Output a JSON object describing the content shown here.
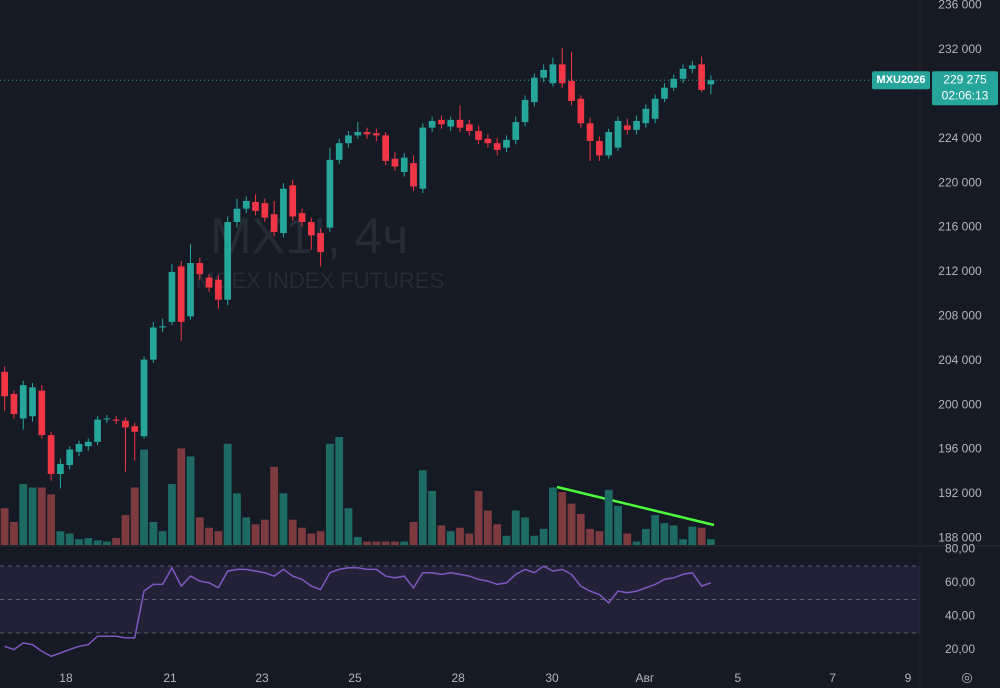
{
  "chart_data": [
    {
      "type": "candlestick",
      "title": "MX1!, 4ч",
      "subtitle": "MOEX INDEX FUTURES",
      "symbol": "MXU2026",
      "countdown": "02:06:13",
      "last_price": {
        "value": 229275,
        "label": "229 275"
      },
      "up_color": "#26a69a",
      "down_color": "#f23645",
      "volume_up_color": "#1e6b64",
      "volume_down_color": "#7d3a3f",
      "xlim": [
        -0.5,
        98.5
      ],
      "xticks": [
        {
          "value": 6.6,
          "label": "18"
        },
        {
          "value": 17.8,
          "label": "21"
        },
        {
          "value": 27.7,
          "label": "23"
        },
        {
          "value": 37.7,
          "label": "25"
        },
        {
          "value": 48.8,
          "label": "28"
        },
        {
          "value": 58.9,
          "label": "30"
        },
        {
          "value": 68.9,
          "label": "Авг"
        },
        {
          "value": 78.9,
          "label": "5"
        },
        {
          "value": 89.1,
          "label": "7"
        },
        {
          "value": 97.2,
          "label": "9"
        }
      ],
      "ylim": [
        187400,
        236500
      ],
      "yticks": [
        {
          "value": 188000,
          "label": "188 000"
        },
        {
          "value": 192000,
          "label": "192 000"
        },
        {
          "value": 196000,
          "label": "196 000"
        },
        {
          "value": 200000,
          "label": "200 000"
        },
        {
          "value": 204000,
          "label": "204 000"
        },
        {
          "value": 208000,
          "label": "208 000"
        },
        {
          "value": 212000,
          "label": "212 000"
        },
        {
          "value": 216000,
          "label": "216 000"
        },
        {
          "value": 220000,
          "label": "220 000"
        },
        {
          "value": 224000,
          "label": "224 000"
        },
        {
          "value": 228000,
          "label": "228 000"
        },
        {
          "value": 232000,
          "label": "232 000"
        },
        {
          "value": 236000,
          "label": "236 000"
        }
      ],
      "open": [
        203000,
        201000,
        198800,
        199000,
        201300,
        197300,
        193800,
        194600,
        195800,
        196300,
        196700,
        198800,
        198700,
        198600,
        198100,
        197200,
        204100,
        207000,
        207500,
        212500,
        208000,
        212800,
        211500,
        211300,
        209500,
        216500,
        217700,
        218300,
        218200,
        217200,
        215500,
        219800,
        217300,
        216500,
        215500,
        216000,
        222100,
        223600,
        224300,
        224600,
        224500,
        224300,
        222200,
        221000,
        221800,
        219500,
        225000,
        225700,
        225100,
        225700,
        225300,
        224700,
        224000,
        223600,
        223200,
        223900,
        225500,
        227300,
        229500,
        229000,
        230700,
        229200,
        227600,
        225400,
        223800,
        222500,
        223200,
        225200,
        224800,
        225400,
        225800,
        227600,
        228600,
        229400,
        230300,
        230700,
        228900
      ],
      "high": [
        203500,
        201300,
        202200,
        202000,
        201800,
        197600,
        195200,
        196300,
        196800,
        197000,
        199000,
        199100,
        199000,
        198900,
        198400,
        204400,
        207500,
        207800,
        212700,
        213000,
        214500,
        213300,
        211800,
        211700,
        217000,
        218600,
        218800,
        219000,
        218600,
        218400,
        220000,
        220300,
        217700,
        216900,
        215900,
        223200,
        224000,
        224700,
        225500,
        225000,
        224900,
        224600,
        222800,
        222700,
        222500,
        225400,
        226000,
        226100,
        226000,
        227000,
        225700,
        225200,
        224400,
        224100,
        224300,
        226000,
        227900,
        229900,
        230700,
        231300,
        232200,
        231800,
        227900,
        225900,
        224200,
        224900,
        226000,
        225800,
        226100,
        227100,
        228000,
        229000,
        229800,
        230700,
        231000,
        231400,
        229700
      ],
      "low": [
        199500,
        198800,
        197800,
        198500,
        197000,
        193200,
        192500,
        194200,
        195400,
        195900,
        196400,
        198400,
        198300,
        194000,
        195000,
        197000,
        203800,
        206600,
        207200,
        205800,
        207700,
        211300,
        210200,
        208700,
        209000,
        216000,
        217300,
        217100,
        216500,
        215200,
        215100,
        216600,
        216100,
        214000,
        212500,
        215600,
        221700,
        223200,
        224000,
        224000,
        223800,
        221600,
        221100,
        220600,
        219300,
        219100,
        224600,
        224900,
        224700,
        224600,
        224300,
        223500,
        223200,
        222500,
        222800,
        223500,
        225100,
        226900,
        229100,
        228700,
        228600,
        227000,
        225000,
        222000,
        222000,
        222200,
        222900,
        224400,
        224400,
        225000,
        225400,
        227300,
        228300,
        229000,
        229900,
        228200,
        228000
      ],
      "close": [
        200800,
        199200,
        201800,
        201600,
        197300,
        193800,
        194700,
        196000,
        196500,
        196700,
        198700,
        198800,
        198600,
        198000,
        197600,
        204100,
        207000,
        207100,
        212000,
        207500,
        212800,
        211800,
        210600,
        209500,
        216500,
        217700,
        218400,
        217500,
        216900,
        215600,
        219500,
        217000,
        216500,
        215300,
        213800,
        222100,
        223600,
        224300,
        224600,
        224400,
        224300,
        222000,
        221500,
        222300,
        219700,
        225000,
        225600,
        225300,
        225700,
        225000,
        224700,
        223900,
        223600,
        223000,
        223900,
        225500,
        227500,
        229500,
        230200,
        230700,
        229000,
        227400,
        225400,
        223800,
        222500,
        224600,
        225600,
        224800,
        225600,
        226700,
        227600,
        228600,
        229400,
        230300,
        230600,
        228400,
        229275
      ],
      "volume": [
        32,
        20,
        53,
        50,
        50,
        44,
        12,
        10,
        5,
        6,
        4,
        3,
        6,
        26,
        50,
        83,
        20,
        12,
        53,
        84,
        77,
        24,
        15,
        12,
        88,
        45,
        24,
        18,
        22,
        68,
        45,
        22,
        15,
        10,
        12,
        88,
        94,
        32,
        7,
        3,
        3,
        3,
        3,
        3,
        20,
        65,
        47,
        17,
        12,
        15,
        10,
        47,
        30,
        18,
        8,
        30,
        24,
        8,
        14,
        50,
        46,
        36,
        27,
        14,
        12,
        48,
        34,
        10,
        3,
        14,
        26,
        19,
        17,
        5,
        16,
        15,
        5
      ],
      "vlim": [
        0,
        100
      ]
    },
    {
      "type": "line",
      "color": "#7e57c2",
      "values": [
        22,
        20,
        24,
        23,
        19,
        16,
        18,
        20,
        22,
        23,
        28,
        28,
        28,
        27,
        27,
        55,
        59,
        59,
        69,
        58,
        64,
        61,
        60,
        57,
        67,
        68,
        68,
        67,
        66,
        64,
        68,
        64,
        62,
        58,
        56,
        66,
        68,
        69,
        69,
        68,
        68,
        64,
        63,
        64,
        57,
        66,
        66,
        65,
        66,
        65,
        64,
        62,
        61,
        59,
        60,
        65,
        68,
        66,
        70,
        67,
        68,
        65,
        58,
        55,
        53,
        48,
        55,
        54,
        55,
        57,
        59,
        62,
        63,
        65,
        66,
        58,
        60
      ],
      "ylim": [
        9,
        82
      ],
      "yticks": [
        {
          "value": 20,
          "label": "20,00"
        },
        {
          "value": 40,
          "label": "40,00"
        },
        {
          "value": 60,
          "label": "60,00"
        },
        {
          "value": 80,
          "label": "80,00"
        }
      ],
      "levels": [
        30,
        50,
        70
      ]
    }
  ]
}
